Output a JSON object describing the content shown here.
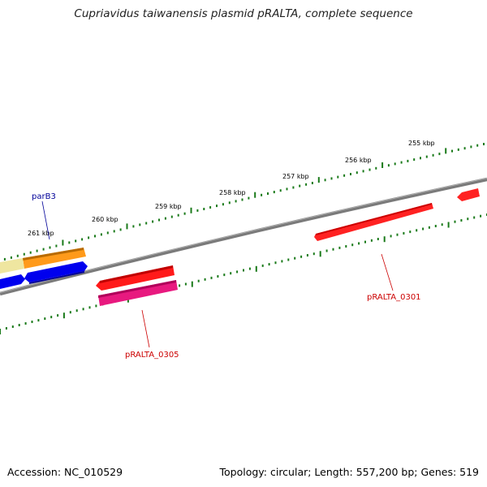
{
  "title": "Cupriavidus taiwanensis plasmid pRALTA, complete sequence",
  "footer": {
    "accession": "Accession: NC_010529",
    "summary": "Topology: circular; Length: 557,200 bp; Genes: 519"
  },
  "scale_labels": [
    "255 kbp",
    "256 kbp",
    "257 kbp",
    "258 kbp",
    "259 kbp",
    "260 kbp",
    "261 kbp"
  ],
  "gene_labels": {
    "parB3": "parB3",
    "pRALTA_0301": "pRALTA_0301",
    "pRALTA_0305": "pRALTA_0305"
  },
  "colors": {
    "backbone": "#808080",
    "ticks": "#1a7a1a",
    "cds_red": "#ff0000",
    "cds_pink": "#e0157a",
    "cds_orange": "#ff9900",
    "cds_pale": "#f0e68c",
    "cds_blue": "#0000ee",
    "label_red": "#cc0000",
    "label_blue": "#000099"
  }
}
